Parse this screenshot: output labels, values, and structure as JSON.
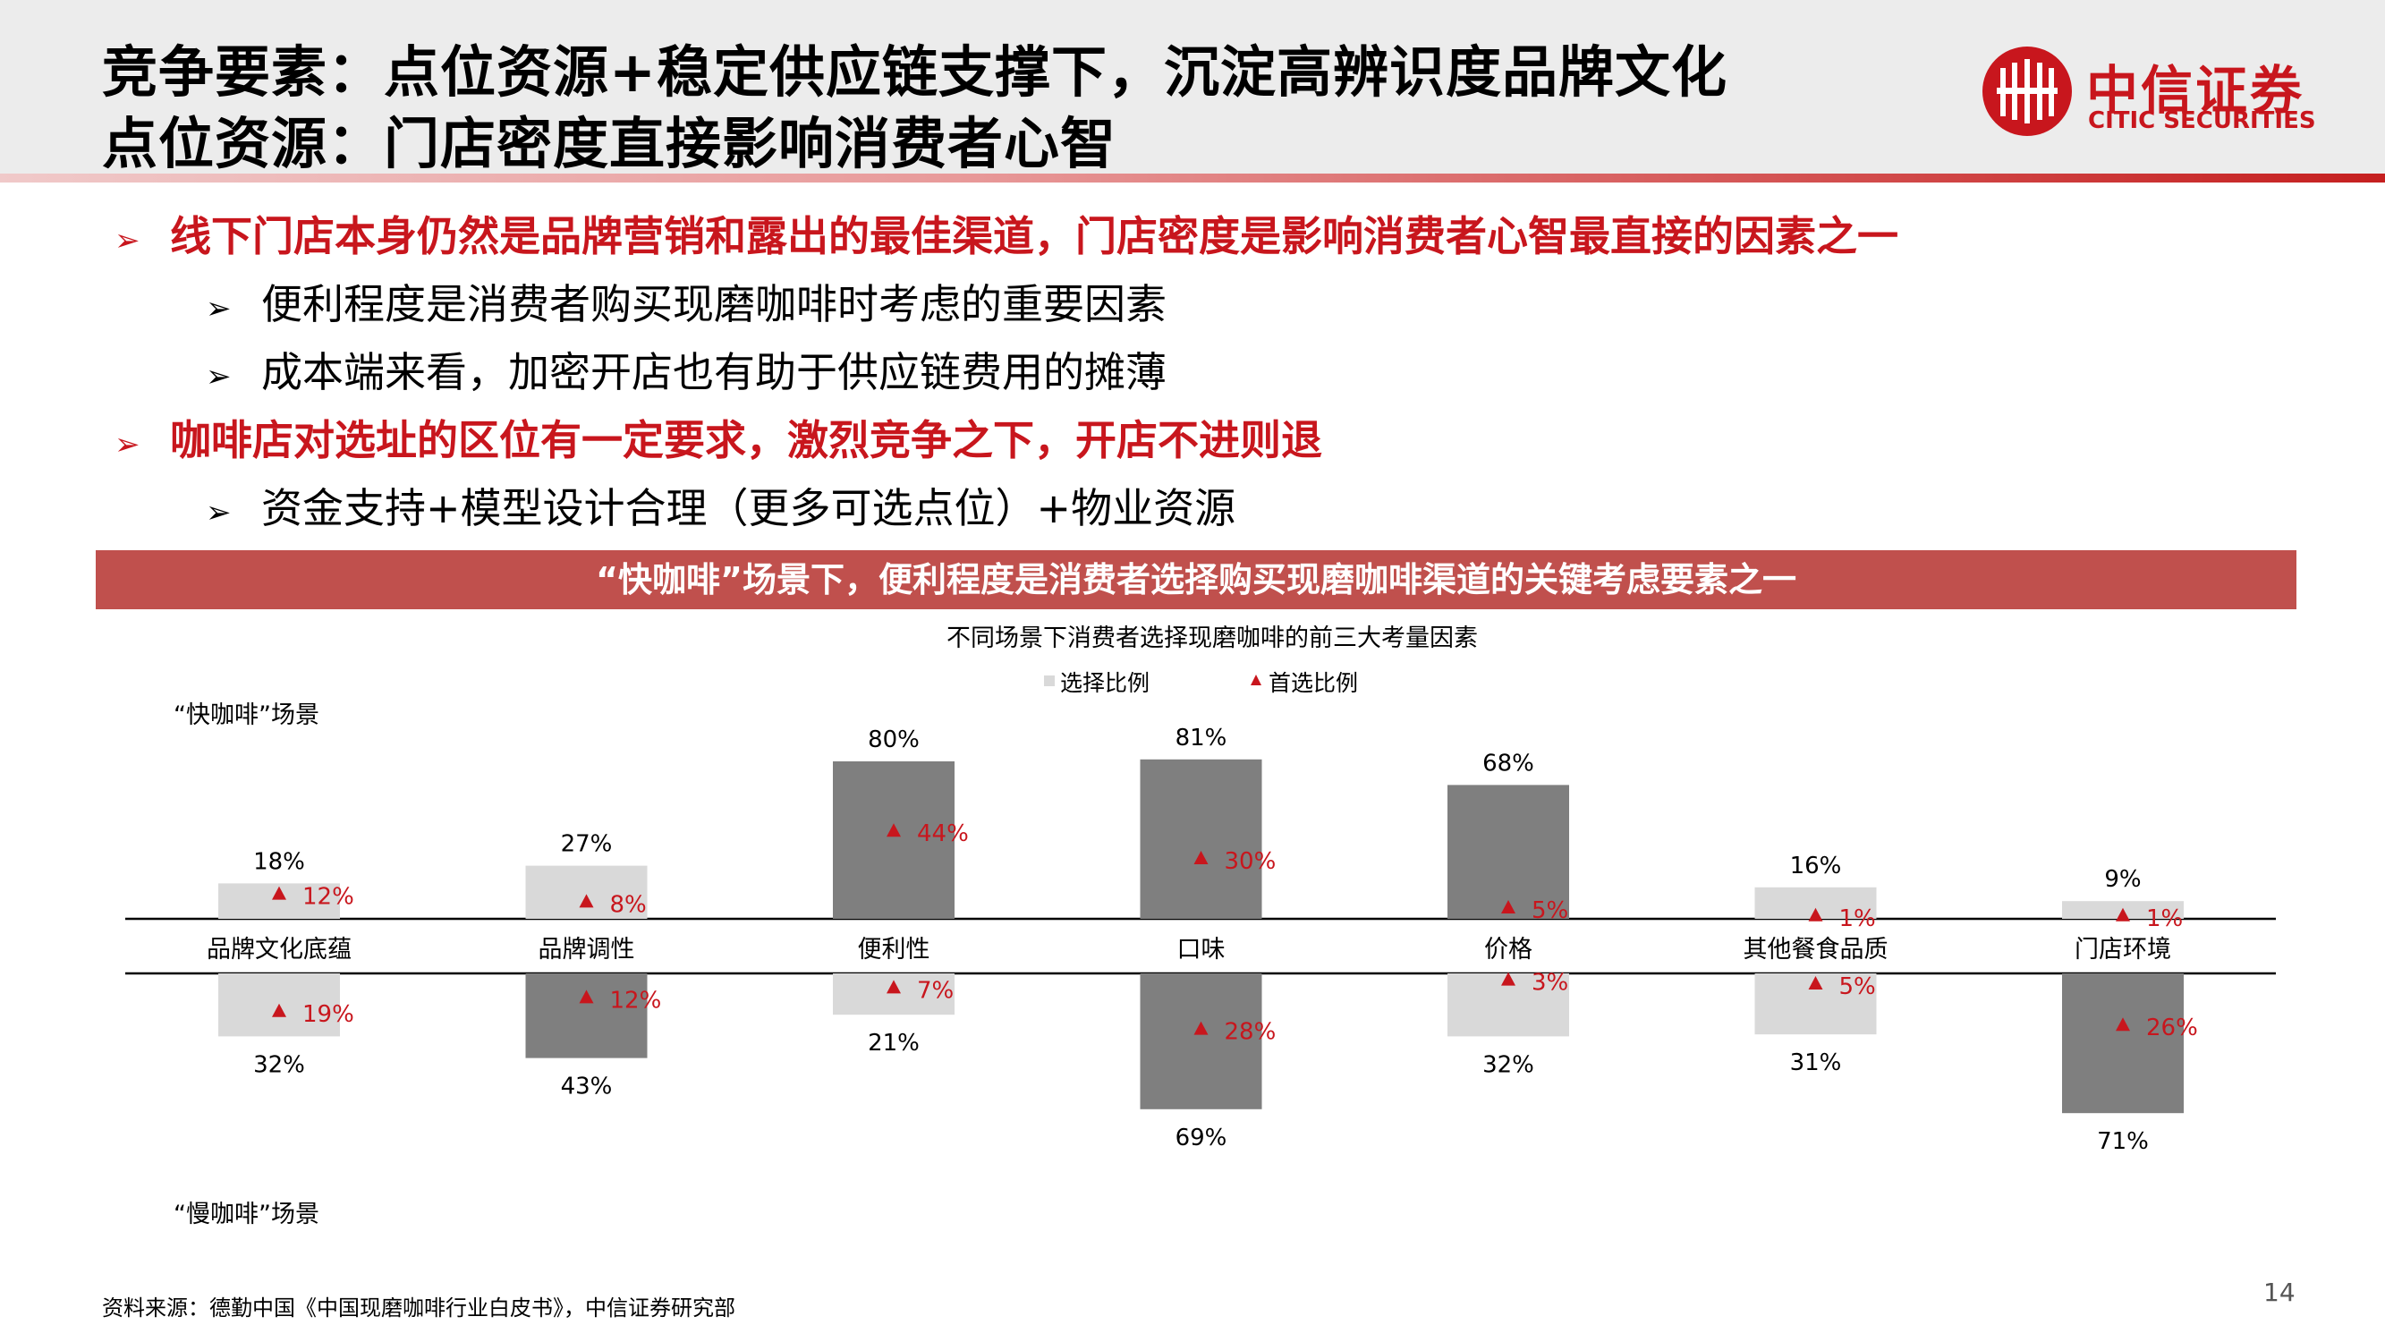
{
  "header": {
    "title_line1": "竞争要素：点位资源+稳定供应链支撑下，沉淀高辨识度品牌文化",
    "title_line2": "点位资源：门店密度直接影响消费者心智",
    "logo": {
      "name_cn": "中信证券",
      "name_en": "CITIC SECURITIES",
      "color": "#c8161d"
    }
  },
  "bullets": [
    {
      "level": 1,
      "text": "线下门店本身仍然是品牌营销和露出的最佳渠道，门店密度是影响消费者心智最直接的因素之一"
    },
    {
      "level": 2,
      "text": "便利程度是消费者购买现磨咖啡时考虑的重要因素"
    },
    {
      "level": 2,
      "text": "成本端来看，加密开店也有助于供应链费用的摊薄"
    },
    {
      "level": 1,
      "text": "咖啡店对选址的区位有一定要求，激烈竞争之下，开店不进则退"
    },
    {
      "level": 2,
      "text": "资金支持+模型设计合理（更多可选点位）+物业资源"
    }
  ],
  "arrow_glyph": "➢",
  "banner": "“快咖啡”场景下，便利程度是消费者选择购买现磨咖啡渠道的关键考虑要素之一",
  "chart_data": {
    "type": "bar",
    "title": "不同场景下消费者选择现磨咖啡的前三大考量因素",
    "legend": [
      "选择比例",
      "首选比例"
    ],
    "categories": [
      "品牌文化底蕴",
      "品牌调性",
      "便利性",
      "口味",
      "价格",
      "其他餐食品质",
      "门店环境"
    ],
    "series": [
      {
        "name": "选择比例",
        "scenario": "“快咖啡”场景",
        "values": [
          18,
          27,
          80,
          81,
          68,
          16,
          9
        ]
      },
      {
        "name": "首选比例",
        "scenario": "“快咖啡”场景",
        "values": [
          12,
          8,
          44,
          30,
          5,
          1,
          1
        ]
      },
      {
        "name": "选择比例",
        "scenario": "“慢咖啡”场景",
        "values": [
          32,
          43,
          21,
          69,
          32,
          31,
          71
        ]
      },
      {
        "name": "首选比例",
        "scenario": "“慢咖啡”场景",
        "values": [
          19,
          12,
          7,
          28,
          3,
          5,
          26
        ]
      }
    ],
    "scenario_labels": {
      "fast": "“快咖啡”场景",
      "slow": "“慢咖啡”场景"
    },
    "unit": "%",
    "ylim": [
      0,
      100
    ],
    "colors": {
      "dark_bar": "#7f7f7f",
      "light_bar": "#d9d9d9",
      "marker": "#c8161d"
    }
  },
  "source": "资料来源：德勤中国《中国现磨咖啡行业白皮书》，中信证券研究部",
  "page_number": "14"
}
